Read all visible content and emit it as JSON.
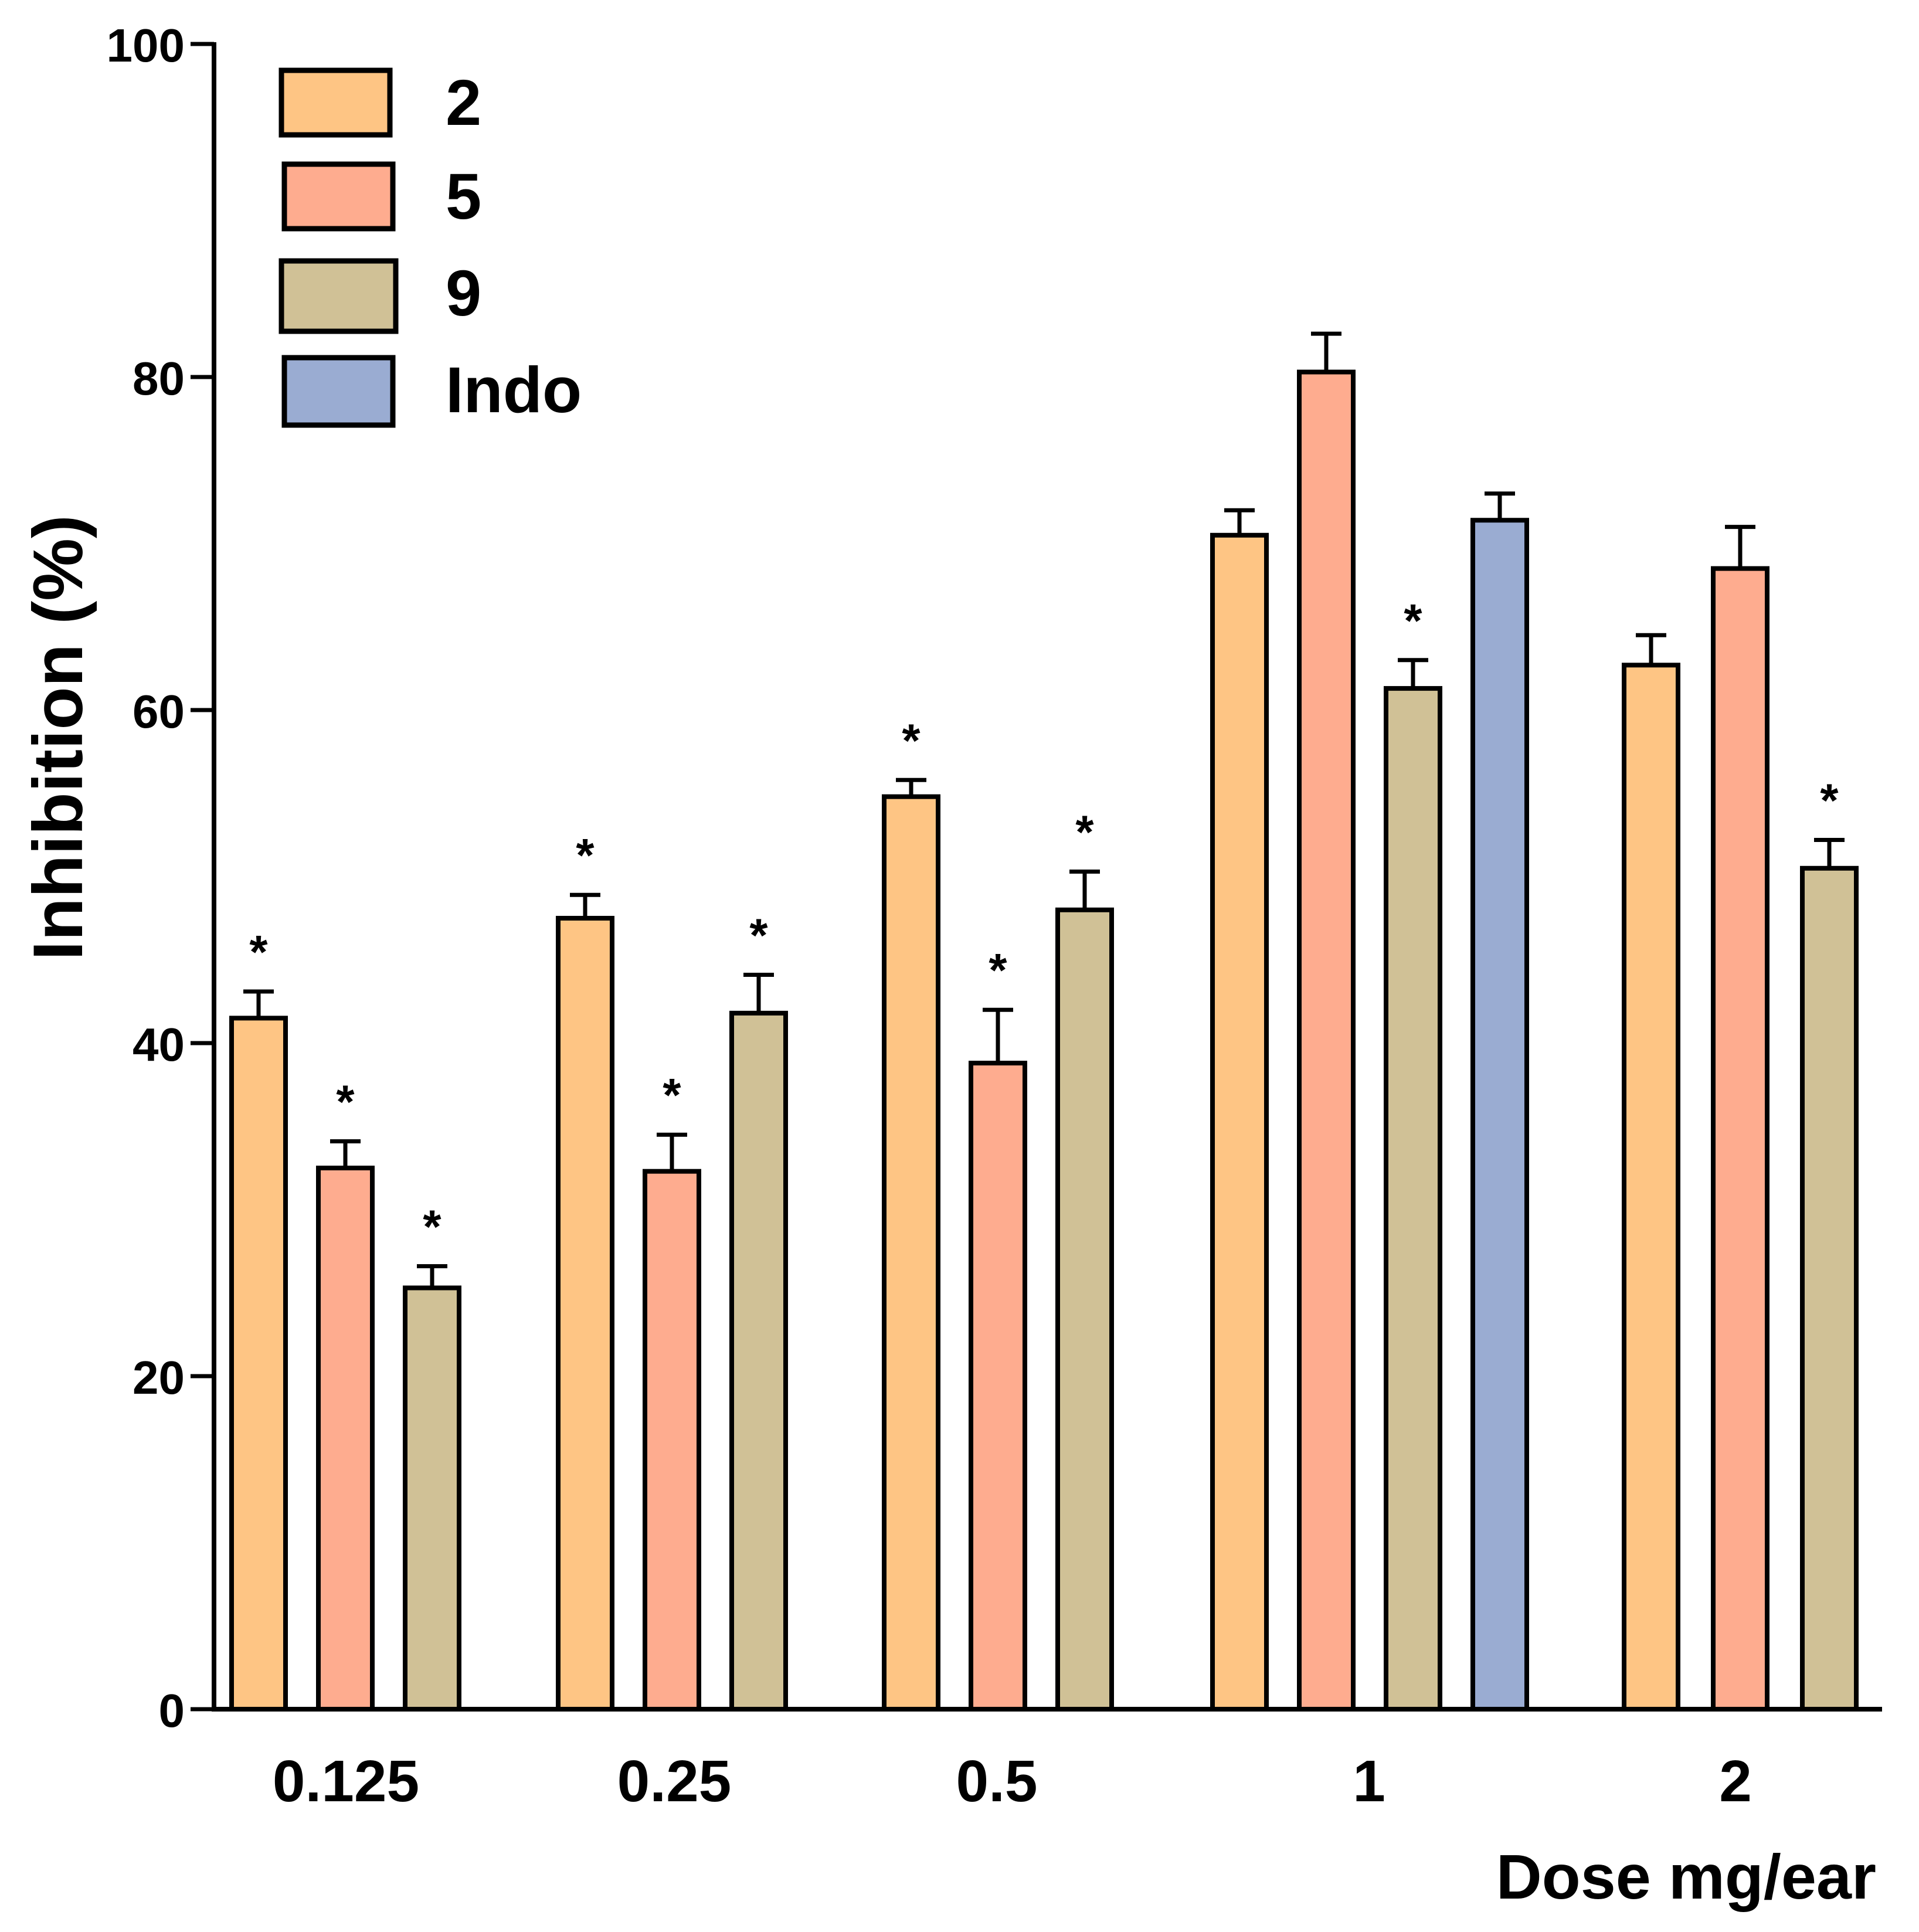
{
  "chart_data": {
    "type": "bar",
    "title": "",
    "ylabel": "Inhibition (%)",
    "xlabel": "Dose mg/ear",
    "ylim": [
      0,
      100
    ],
    "yticks": [
      0,
      20,
      40,
      60,
      80,
      100
    ],
    "ytick_labels": [
      "0",
      "20",
      "40",
      "60",
      "80",
      "100"
    ],
    "categories": [
      "0.125",
      "0.25",
      "0.5",
      "1",
      "2"
    ],
    "significance_marker": "*",
    "colors": {
      "2": "#FEC584",
      "5": "#FEAC8F",
      "9": "#D0C196",
      "Indo": "#9AACD2",
      "outline": "#000000"
    },
    "legend": {
      "position": "top-left",
      "entries": [
        "2",
        "5",
        "9",
        "Indo"
      ]
    },
    "series": [
      {
        "name": "2",
        "values": [
          41.5,
          47.5,
          54.8,
          70.5,
          62.7
        ],
        "errors": [
          1.6,
          1.4,
          1.0,
          1.5,
          1.8
        ],
        "significant": [
          true,
          true,
          true,
          false,
          false
        ]
      },
      {
        "name": "5",
        "values": [
          32.5,
          32.3,
          38.8,
          80.3,
          68.5
        ],
        "errors": [
          1.6,
          2.2,
          3.2,
          2.3,
          2.5
        ],
        "significant": [
          true,
          true,
          true,
          false,
          false
        ]
      },
      {
        "name": "9",
        "values": [
          25.3,
          41.8,
          48.0,
          61.3,
          50.5
        ],
        "errors": [
          1.3,
          2.3,
          2.3,
          1.7,
          1.7
        ],
        "significant": [
          true,
          true,
          true,
          true,
          true
        ]
      },
      {
        "name": "Indo",
        "values": [
          null,
          null,
          null,
          71.4,
          null
        ],
        "errors": [
          null,
          null,
          null,
          1.6,
          null
        ],
        "significant": [
          false,
          false,
          false,
          false,
          false
        ]
      }
    ]
  }
}
